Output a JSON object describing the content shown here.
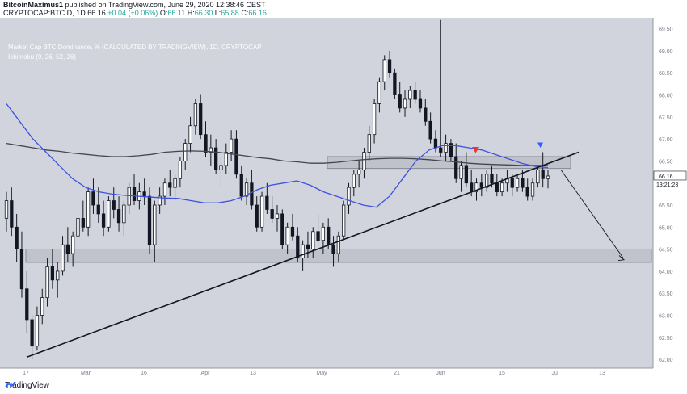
{
  "header": {
    "publisher": "BitcoinMaximus1",
    "published_text": " published on TradingView.com, June 29, 2020 12:38:46 CEST",
    "symbol": "CRYPTOCAP:BTC.D, 1D",
    "last": "66.16",
    "change": "+0.04 (+0.06%)",
    "o_label": "O:",
    "o": "66.11",
    "h_label": "H:",
    "h": "66.30",
    "l_label": "L:",
    "l": "65.88",
    "c_label": "C:",
    "c": "66.16"
  },
  "legend": {
    "main": "Market Cap BTC Dominance, % (CALCULATED BY TRADINGVIEW), 1D, CRYPTOCAP",
    "indicator": "Ichimoku (9, 26, 52, 26)"
  },
  "price_tag": {
    "value": "66.16",
    "countdown": "13:21:23"
  },
  "footer": {
    "brand": "TradingView"
  },
  "colors": {
    "background": "#d1d4dc",
    "candle": "#131722",
    "ma_blue": "#3f51e0",
    "ma_dark": "#434651",
    "zone": "#b2b5be",
    "arrow_red": "#e53935",
    "arrow_blue": "#2962ff"
  },
  "chart_data": {
    "type": "candlestick",
    "ylim": [
      61.8,
      69.75
    ],
    "y_ticks": [
      "69.50",
      "69.00",
      "68.50",
      "68.00",
      "67.50",
      "67.00",
      "66.50",
      "66.00",
      "65.50",
      "65.00",
      "64.50",
      "64.00",
      "63.50",
      "63.00",
      "62.50",
      "62.00"
    ],
    "x_ticks": [
      "17",
      "Mar",
      "16",
      "Apr",
      "13",
      "May",
      "21",
      "Jun",
      "15",
      "Jul",
      "13"
    ],
    "price_line": 66.16,
    "candles": [
      [
        65.2,
        65.8,
        64.9,
        65.6
      ],
      [
        65.6,
        65.9,
        64.8,
        65.0
      ],
      [
        65.0,
        65.3,
        64.2,
        64.5
      ],
      [
        64.5,
        64.9,
        63.4,
        63.6
      ],
      [
        63.6,
        64.0,
        62.6,
        62.9
      ],
      [
        62.9,
        63.0,
        62.0,
        62.3
      ],
      [
        62.3,
        63.2,
        62.2,
        63.0
      ],
      [
        63.0,
        63.6,
        62.8,
        63.4
      ],
      [
        63.4,
        64.3,
        63.2,
        64.1
      ],
      [
        64.1,
        64.5,
        63.6,
        63.8
      ],
      [
        63.8,
        64.2,
        63.4,
        64.0
      ],
      [
        64.0,
        64.8,
        63.9,
        64.6
      ],
      [
        64.6,
        65.0,
        64.2,
        64.4
      ],
      [
        64.4,
        64.9,
        64.1,
        64.8
      ],
      [
        64.8,
        65.3,
        64.6,
        65.2
      ],
      [
        65.2,
        65.6,
        64.9,
        65.0
      ],
      [
        65.0,
        65.9,
        64.8,
        65.8
      ],
      [
        65.8,
        66.1,
        65.3,
        65.5
      ],
      [
        65.5,
        65.9,
        65.1,
        65.3
      ],
      [
        65.3,
        65.6,
        64.8,
        65.0
      ],
      [
        65.0,
        65.7,
        64.9,
        65.6
      ],
      [
        65.6,
        65.9,
        65.2,
        65.4
      ],
      [
        65.4,
        65.7,
        64.9,
        65.1
      ],
      [
        65.1,
        65.6,
        64.8,
        65.5
      ],
      [
        65.5,
        66.0,
        65.3,
        65.9
      ],
      [
        65.9,
        66.2,
        65.5,
        65.6
      ],
      [
        65.6,
        66.0,
        65.4,
        65.8
      ],
      [
        65.8,
        66.1,
        65.5,
        65.7
      ],
      [
        65.7,
        65.9,
        64.4,
        64.6
      ],
      [
        64.6,
        65.6,
        64.2,
        65.5
      ],
      [
        65.5,
        65.9,
        65.3,
        65.7
      ],
      [
        65.7,
        66.1,
        65.5,
        66.0
      ],
      [
        66.0,
        66.3,
        65.7,
        65.9
      ],
      [
        65.9,
        66.2,
        65.6,
        66.1
      ],
      [
        66.1,
        66.6,
        65.9,
        66.5
      ],
      [
        66.5,
        67.0,
        66.3,
        66.9
      ],
      [
        66.9,
        67.5,
        66.7,
        67.3
      ],
      [
        67.3,
        67.9,
        67.1,
        67.8
      ],
      [
        67.8,
        68.0,
        67.0,
        67.1
      ],
      [
        67.1,
        67.4,
        66.6,
        66.7
      ],
      [
        66.7,
        67.1,
        66.4,
        66.8
      ],
      [
        66.8,
        67.0,
        66.2,
        66.3
      ],
      [
        66.3,
        66.6,
        65.9,
        66.4
      ],
      [
        66.4,
        66.9,
        66.2,
        66.7
      ],
      [
        66.7,
        67.2,
        66.5,
        67.0
      ],
      [
        67.0,
        67.2,
        66.1,
        66.2
      ],
      [
        66.2,
        66.4,
        65.6,
        65.7
      ],
      [
        65.7,
        66.1,
        65.5,
        66.0
      ],
      [
        66.0,
        66.3,
        65.4,
        65.5
      ],
      [
        65.5,
        65.7,
        64.9,
        65.0
      ],
      [
        65.0,
        65.8,
        64.9,
        65.7
      ],
      [
        65.7,
        66.0,
        65.3,
        65.4
      ],
      [
        65.4,
        65.7,
        65.1,
        65.2
      ],
      [
        65.2,
        65.5,
        64.9,
        65.3
      ],
      [
        65.3,
        65.4,
        64.5,
        64.6
      ],
      [
        64.6,
        65.1,
        64.4,
        65.0
      ],
      [
        65.0,
        65.3,
        64.7,
        64.8
      ],
      [
        64.8,
        65.0,
        64.2,
        64.3
      ],
      [
        64.3,
        64.7,
        64.0,
        64.6
      ],
      [
        64.6,
        64.9,
        64.3,
        64.5
      ],
      [
        64.5,
        65.0,
        64.3,
        64.9
      ],
      [
        64.9,
        65.3,
        64.6,
        64.7
      ],
      [
        64.7,
        65.1,
        64.4,
        65.0
      ],
      [
        65.0,
        65.2,
        64.5,
        64.6
      ],
      [
        64.6,
        64.8,
        64.1,
        64.4
      ],
      [
        64.4,
        64.9,
        64.2,
        64.8
      ],
      [
        64.8,
        65.6,
        64.7,
        65.5
      ],
      [
        65.5,
        66.0,
        65.3,
        65.9
      ],
      [
        65.9,
        66.3,
        65.7,
        66.2
      ],
      [
        66.2,
        66.5,
        65.9,
        66.3
      ],
      [
        66.3,
        66.8,
        66.1,
        66.7
      ],
      [
        66.7,
        67.3,
        66.5,
        67.1
      ],
      [
        67.1,
        67.9,
        66.9,
        67.8
      ],
      [
        67.8,
        68.4,
        67.6,
        68.3
      ],
      [
        68.3,
        68.9,
        68.1,
        68.8
      ],
      [
        68.8,
        69.0,
        68.4,
        68.5
      ],
      [
        68.5,
        68.6,
        67.9,
        68.0
      ],
      [
        68.0,
        68.3,
        67.6,
        67.7
      ],
      [
        67.7,
        68.1,
        67.5,
        67.9
      ],
      [
        67.9,
        68.2,
        67.7,
        68.1
      ],
      [
        68.1,
        68.3,
        67.8,
        67.9
      ],
      [
        67.9,
        68.1,
        67.6,
        67.7
      ],
      [
        67.7,
        67.9,
        67.3,
        67.4
      ],
      [
        67.4,
        67.6,
        66.9,
        67.0
      ],
      [
        67.0,
        67.2,
        66.7,
        66.8
      ],
      [
        66.8,
        69.7,
        66.6,
        66.7
      ],
      [
        66.7,
        67.1,
        66.5,
        66.9
      ],
      [
        66.9,
        67.0,
        66.5,
        66.6
      ],
      [
        66.6,
        66.9,
        66.0,
        66.1
      ],
      [
        66.1,
        66.5,
        65.8,
        66.4
      ],
      [
        66.4,
        66.7,
        65.9,
        66.0
      ],
      [
        66.0,
        66.3,
        65.7,
        65.8
      ],
      [
        65.8,
        66.1,
        65.6,
        66.0
      ],
      [
        66.0,
        66.2,
        65.7,
        65.9
      ],
      [
        65.9,
        66.3,
        65.8,
        66.2
      ],
      [
        66.2,
        66.4,
        65.9,
        66.0
      ],
      [
        66.0,
        66.2,
        65.7,
        65.8
      ],
      [
        65.8,
        66.1,
        65.7,
        66.0
      ],
      [
        66.0,
        66.3,
        65.8,
        66.1
      ],
      [
        66.1,
        66.2,
        65.7,
        65.9
      ],
      [
        65.9,
        66.2,
        65.8,
        66.1
      ],
      [
        66.1,
        66.3,
        65.8,
        65.9
      ],
      [
        65.9,
        66.1,
        65.6,
        65.7
      ],
      [
        65.7,
        66.1,
        65.6,
        66.0
      ],
      [
        66.0,
        66.4,
        65.9,
        66.3
      ],
      [
        66.3,
        66.7,
        65.9,
        66.1
      ],
      [
        66.1,
        66.3,
        65.88,
        66.16
      ]
    ],
    "ma_blue": [
      67.8,
      67.4,
      67.0,
      66.7,
      66.4,
      66.1,
      65.9,
      65.8,
      65.75,
      65.72,
      65.7,
      65.68,
      65.66,
      65.65,
      65.6,
      65.55,
      65.55,
      65.6,
      65.7,
      65.85,
      65.95,
      66.0,
      66.05,
      65.95,
      65.8,
      65.7,
      65.6,
      65.5,
      65.45,
      65.7,
      66.1,
      66.5,
      66.75,
      66.85,
      66.85,
      66.8,
      66.75,
      66.65,
      66.55,
      66.45,
      66.38,
      66.35
    ],
    "ma_dark": [
      66.9,
      66.85,
      66.8,
      66.75,
      66.72,
      66.68,
      66.65,
      66.62,
      66.6,
      66.6,
      66.62,
      66.65,
      66.7,
      66.72,
      66.73,
      66.72,
      66.7,
      66.66,
      66.62,
      66.58,
      66.55,
      66.5,
      66.48,
      66.45,
      66.45,
      66.47,
      66.5,
      66.53,
      66.55,
      66.56,
      66.56,
      66.55,
      66.53,
      66.5,
      66.48,
      66.45,
      66.43,
      66.42,
      66.41,
      66.4,
      66.4,
      66.4
    ]
  }
}
